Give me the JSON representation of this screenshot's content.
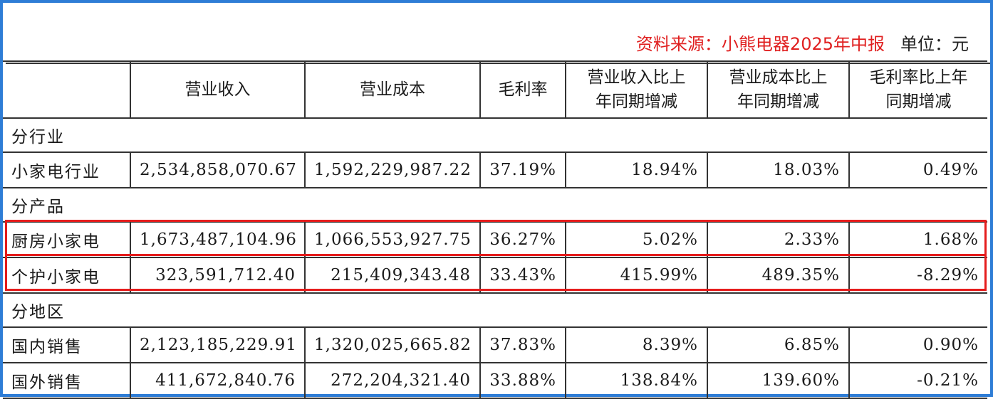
{
  "source": {
    "text": "资料来源：小熊电器2025年中报",
    "unit": "单位：元"
  },
  "headers": [
    "",
    "营业收入",
    "营业成本",
    "毛利率",
    "营业收入比上年同期增减",
    "营业成本比上年同期增减",
    "毛利率比上年同期增减"
  ],
  "headers_display": [
    [
      ""
    ],
    [
      "营业收入"
    ],
    [
      "营业成本"
    ],
    [
      "毛利率"
    ],
    [
      "营业收入比上",
      "年同期增减"
    ],
    [
      "营业成本比上",
      "年同期增减"
    ],
    [
      "毛利率比上年",
      "同期增减"
    ]
  ],
  "sections": [
    {
      "title": "分行业",
      "rows": [
        [
          "小家电行业",
          "2,534,858,070.67",
          "1,592,229,987.22",
          "37.19%",
          "18.94%",
          "18.03%",
          "0.49%"
        ]
      ]
    },
    {
      "title": "分产品",
      "rows": [
        [
          "厨房小家电",
          "1,673,487,104.96",
          "1,066,553,927.75",
          "36.27%",
          "5.02%",
          "2.33%",
          "1.68%"
        ],
        [
          "个护小家电",
          "323,591,712.40",
          "215,409,343.48",
          "33.43%",
          "415.99%",
          "489.35%",
          "-8.29%"
        ]
      ]
    },
    {
      "title": "分地区",
      "rows": [
        [
          "国内销售",
          "2,123,185,229.91",
          "1,320,025,665.82",
          "37.83%",
          "8.39%",
          "6.85%",
          "0.90%"
        ],
        [
          "国外销售",
          "411,672,840.76",
          "272,204,321.40",
          "33.88%",
          "138.84%",
          "139.60%",
          "-0.21%"
        ]
      ]
    }
  ],
  "colors": {
    "frame_border": "#2e7dd6",
    "source_text": "#e02020",
    "highlight_box": "#e51c1c"
  }
}
